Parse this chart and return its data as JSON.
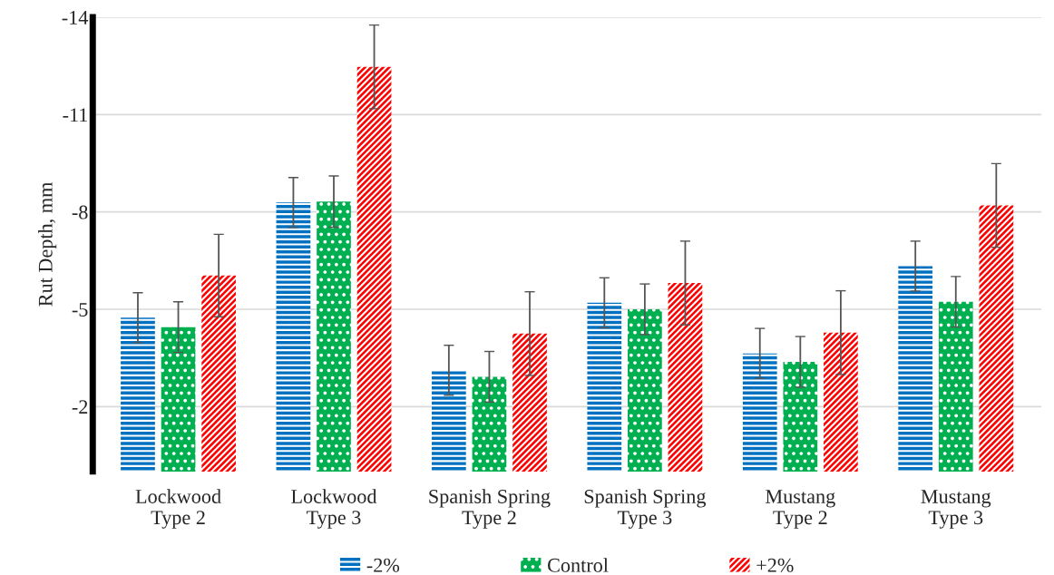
{
  "chart_data": {
    "type": "bar",
    "ylabel": "Rut Depth, mm",
    "categories": [
      "Lockwood\nType 2",
      "Lockwood\nType 3",
      "Spanish Spring\nType 2",
      "Spanish Spring\nType 3",
      "Mustang\nType 2",
      "Mustang\nType 3"
    ],
    "series": [
      {
        "name": "-2%",
        "color": "#0070c0",
        "values": [
          -4.74,
          -8.29,
          -3.12,
          -5.2,
          -3.64,
          -6.33
        ],
        "errors": [
          0.77,
          0.77,
          0.77,
          0.77,
          0.77,
          0.77
        ]
      },
      {
        "name": "Control",
        "color": "#00b050",
        "values": [
          -4.45,
          -8.32,
          -2.92,
          -5.0,
          -3.38,
          -5.23
        ],
        "errors": [
          0.78,
          0.79,
          0.78,
          0.78,
          0.78,
          0.78
        ]
      },
      {
        "name": "+2%",
        "color": "#ff0000",
        "values": [
          -6.04,
          -12.47,
          -4.25,
          -5.81,
          -4.28,
          -8.2
        ],
        "errors": [
          1.27,
          1.29,
          1.29,
          1.29,
          1.29,
          1.29
        ]
      }
    ],
    "ylim": [
      0,
      -14
    ],
    "yticks": [
      -2,
      -5,
      -8,
      -11,
      -14
    ],
    "grid": "y",
    "legend": "bottom"
  }
}
